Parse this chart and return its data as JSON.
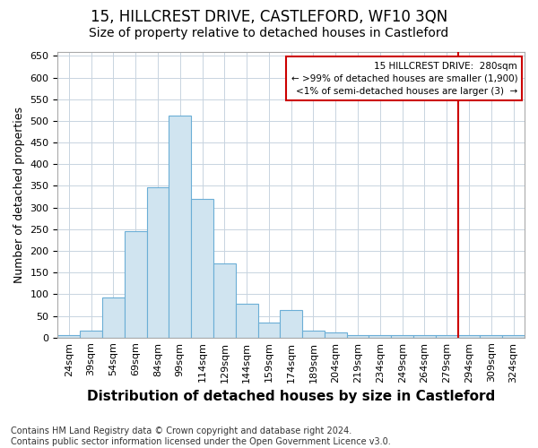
{
  "title": "15, HILLCREST DRIVE, CASTLEFORD, WF10 3QN",
  "subtitle": "Size of property relative to detached houses in Castleford",
  "xlabel": "Distribution of detached houses by size in Castleford",
  "ylabel": "Number of detached properties",
  "bar_labels": [
    "24sqm",
    "39sqm",
    "54sqm",
    "69sqm",
    "84sqm",
    "99sqm",
    "114sqm",
    "129sqm",
    "144sqm",
    "159sqm",
    "174sqm",
    "189sqm",
    "204sqm",
    "219sqm",
    "234sqm",
    "249sqm",
    "264sqm",
    "279sqm",
    "294sqm",
    "309sqm",
    "324sqm"
  ],
  "bar_heights": [
    5,
    15,
    92,
    245,
    347,
    513,
    320,
    172,
    78,
    35,
    63,
    15,
    12,
    5,
    5,
    5,
    5,
    5,
    5,
    5,
    5
  ],
  "bar_color": "#d0e4f0",
  "bar_edge_color": "#6baed6",
  "grid_color": "#c8d4e0",
  "background_color": "#ffffff",
  "vline_color": "#cc0000",
  "vline_label_idx": 17,
  "annotation_line1": "15 HILLCREST DRIVE:  280sqm",
  "annotation_line2": "← >99% of detached houses are smaller (1,900)",
  "annotation_line3": "<1% of semi-detached houses are larger (3)  →",
  "annotation_box_color": "#cc0000",
  "annotation_bg": "#ffffff",
  "ylim": [
    0,
    660
  ],
  "yticks": [
    0,
    50,
    100,
    150,
    200,
    250,
    300,
    350,
    400,
    450,
    500,
    550,
    600,
    650
  ],
  "footer": "Contains HM Land Registry data © Crown copyright and database right 2024.\nContains public sector information licensed under the Open Government Licence v3.0.",
  "title_fontsize": 12,
  "subtitle_fontsize": 10,
  "xlabel_fontsize": 11,
  "ylabel_fontsize": 9,
  "tick_fontsize": 8,
  "footer_fontsize": 7
}
